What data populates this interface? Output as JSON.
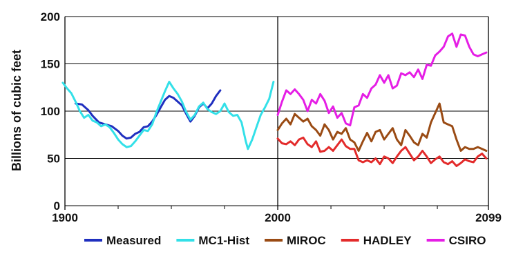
{
  "chart_data": {
    "type": "line",
    "title": "",
    "xlabel": "",
    "ylabel": "Billions of cubic feet",
    "xlim": [
      1900,
      2099
    ],
    "ylim": [
      0,
      200
    ],
    "x_ticks": [
      "1900",
      "2000",
      "2099"
    ],
    "y_ticks": [
      "0",
      "50",
      "100",
      "150",
      "200"
    ],
    "grid": "horizontal",
    "legend_position": "bottom",
    "series": [
      {
        "name": "Measured",
        "color": "#1f2fbf",
        "points": [
          [
            1905,
            108
          ],
          [
            1908,
            107
          ],
          [
            1911,
            101
          ],
          [
            1913,
            95
          ],
          [
            1916,
            88
          ],
          [
            1919,
            86
          ],
          [
            1922,
            84
          ],
          [
            1925,
            79
          ],
          [
            1927,
            74
          ],
          [
            1929,
            71
          ],
          [
            1931,
            72
          ],
          [
            1933,
            76
          ],
          [
            1935,
            78
          ],
          [
            1937,
            83
          ],
          [
            1939,
            84
          ],
          [
            1941,
            89
          ],
          [
            1943,
            96
          ],
          [
            1945,
            104
          ],
          [
            1947,
            112
          ],
          [
            1949,
            116
          ],
          [
            1951,
            114
          ],
          [
            1953,
            110
          ],
          [
            1955,
            106
          ],
          [
            1957,
            97
          ],
          [
            1959,
            89
          ],
          [
            1961,
            95
          ],
          [
            1963,
            104
          ],
          [
            1965,
            108
          ],
          [
            1967,
            103
          ],
          [
            1969,
            108
          ],
          [
            1971,
            116
          ],
          [
            1973,
            122
          ]
        ]
      },
      {
        "name": "MC1-Hist",
        "color": "#33e0e8",
        "points": [
          [
            1899,
            130
          ],
          [
            1901,
            124
          ],
          [
            1903,
            119
          ],
          [
            1905,
            110
          ],
          [
            1907,
            100
          ],
          [
            1909,
            93
          ],
          [
            1911,
            96
          ],
          [
            1913,
            90
          ],
          [
            1915,
            88
          ],
          [
            1917,
            84
          ],
          [
            1919,
            86
          ],
          [
            1921,
            83
          ],
          [
            1923,
            77
          ],
          [
            1925,
            70
          ],
          [
            1927,
            65
          ],
          [
            1929,
            62
          ],
          [
            1931,
            63
          ],
          [
            1933,
            68
          ],
          [
            1935,
            74
          ],
          [
            1937,
            80
          ],
          [
            1939,
            79
          ],
          [
            1941,
            86
          ],
          [
            1943,
            99
          ],
          [
            1945,
            110
          ],
          [
            1947,
            121
          ],
          [
            1949,
            131
          ],
          [
            1951,
            124
          ],
          [
            1953,
            118
          ],
          [
            1955,
            110
          ],
          [
            1957,
            99
          ],
          [
            1959,
            91
          ],
          [
            1961,
            96
          ],
          [
            1963,
            105
          ],
          [
            1965,
            109
          ],
          [
            1967,
            102
          ],
          [
            1969,
            99
          ],
          [
            1971,
            97
          ],
          [
            1973,
            100
          ],
          [
            1975,
            108
          ],
          [
            1977,
            99
          ],
          [
            1979,
            95
          ],
          [
            1981,
            96
          ],
          [
            1983,
            88
          ],
          [
            1985,
            68
          ],
          [
            1986,
            60
          ],
          [
            1988,
            70
          ],
          [
            1990,
            83
          ],
          [
            1992,
            96
          ],
          [
            1994,
            104
          ],
          [
            1996,
            113
          ],
          [
            1998,
            131
          ]
        ]
      },
      {
        "name": "MIROC",
        "color": "#9a4b14",
        "points": [
          [
            2000,
            80
          ],
          [
            2002,
            87
          ],
          [
            2004,
            92
          ],
          [
            2006,
            86
          ],
          [
            2008,
            97
          ],
          [
            2010,
            93
          ],
          [
            2012,
            89
          ],
          [
            2014,
            92
          ],
          [
            2016,
            84
          ],
          [
            2018,
            80
          ],
          [
            2020,
            74
          ],
          [
            2022,
            86
          ],
          [
            2024,
            80
          ],
          [
            2026,
            70
          ],
          [
            2028,
            78
          ],
          [
            2030,
            76
          ],
          [
            2032,
            82
          ],
          [
            2034,
            70
          ],
          [
            2036,
            67
          ],
          [
            2038,
            58
          ],
          [
            2040,
            68
          ],
          [
            2042,
            77
          ],
          [
            2044,
            68
          ],
          [
            2046,
            78
          ],
          [
            2048,
            80
          ],
          [
            2050,
            70
          ],
          [
            2052,
            76
          ],
          [
            2054,
            82
          ],
          [
            2056,
            70
          ],
          [
            2058,
            64
          ],
          [
            2060,
            80
          ],
          [
            2062,
            74
          ],
          [
            2064,
            67
          ],
          [
            2066,
            64
          ],
          [
            2068,
            76
          ],
          [
            2070,
            72
          ],
          [
            2072,
            88
          ],
          [
            2074,
            98
          ],
          [
            2076,
            108
          ],
          [
            2078,
            88
          ],
          [
            2080,
            86
          ],
          [
            2082,
            84
          ],
          [
            2084,
            70
          ],
          [
            2086,
            58
          ],
          [
            2088,
            62
          ],
          [
            2090,
            60
          ],
          [
            2092,
            60
          ],
          [
            2094,
            62
          ],
          [
            2096,
            60
          ],
          [
            2098,
            58
          ]
        ]
      },
      {
        "name": "HADLEY",
        "color": "#e32b2b",
        "points": [
          [
            2000,
            71
          ],
          [
            2002,
            66
          ],
          [
            2004,
            65
          ],
          [
            2006,
            68
          ],
          [
            2008,
            64
          ],
          [
            2010,
            70
          ],
          [
            2012,
            72
          ],
          [
            2014,
            65
          ],
          [
            2016,
            62
          ],
          [
            2018,
            68
          ],
          [
            2020,
            57
          ],
          [
            2022,
            58
          ],
          [
            2024,
            62
          ],
          [
            2026,
            58
          ],
          [
            2028,
            64
          ],
          [
            2030,
            70
          ],
          [
            2032,
            63
          ],
          [
            2034,
            60
          ],
          [
            2036,
            60
          ],
          [
            2038,
            48
          ],
          [
            2040,
            46
          ],
          [
            2042,
            48
          ],
          [
            2044,
            46
          ],
          [
            2046,
            50
          ],
          [
            2048,
            44
          ],
          [
            2050,
            52
          ],
          [
            2052,
            50
          ],
          [
            2054,
            45
          ],
          [
            2056,
            52
          ],
          [
            2058,
            58
          ],
          [
            2060,
            62
          ],
          [
            2062,
            55
          ],
          [
            2064,
            48
          ],
          [
            2066,
            52
          ],
          [
            2068,
            58
          ],
          [
            2070,
            52
          ],
          [
            2072,
            45
          ],
          [
            2074,
            49
          ],
          [
            2076,
            52
          ],
          [
            2078,
            46
          ],
          [
            2080,
            44
          ],
          [
            2082,
            47
          ],
          [
            2084,
            42
          ],
          [
            2086,
            45
          ],
          [
            2088,
            49
          ],
          [
            2090,
            47
          ],
          [
            2092,
            46
          ],
          [
            2094,
            52
          ],
          [
            2096,
            55
          ],
          [
            2098,
            50
          ]
        ]
      },
      {
        "name": "CSIRO",
        "color": "#e51ee5",
        "points": [
          [
            2000,
            96
          ],
          [
            2002,
            110
          ],
          [
            2004,
            122
          ],
          [
            2006,
            118
          ],
          [
            2008,
            123
          ],
          [
            2010,
            118
          ],
          [
            2012,
            112
          ],
          [
            2014,
            100
          ],
          [
            2016,
            112
          ],
          [
            2018,
            108
          ],
          [
            2020,
            118
          ],
          [
            2022,
            111
          ],
          [
            2024,
            98
          ],
          [
            2026,
            105
          ],
          [
            2028,
            93
          ],
          [
            2030,
            98
          ],
          [
            2032,
            87
          ],
          [
            2034,
            85
          ],
          [
            2036,
            104
          ],
          [
            2038,
            106
          ],
          [
            2040,
            118
          ],
          [
            2042,
            114
          ],
          [
            2044,
            124
          ],
          [
            2046,
            128
          ],
          [
            2048,
            138
          ],
          [
            2050,
            130
          ],
          [
            2052,
            138
          ],
          [
            2054,
            124
          ],
          [
            2056,
            127
          ],
          [
            2058,
            140
          ],
          [
            2060,
            138
          ],
          [
            2062,
            141
          ],
          [
            2064,
            136
          ],
          [
            2066,
            144
          ],
          [
            2068,
            134
          ],
          [
            2070,
            149
          ],
          [
            2072,
            148
          ],
          [
            2074,
            159
          ],
          [
            2076,
            163
          ],
          [
            2078,
            168
          ],
          [
            2080,
            179
          ],
          [
            2082,
            182
          ],
          [
            2084,
            168
          ],
          [
            2086,
            181
          ],
          [
            2088,
            180
          ],
          [
            2090,
            168
          ],
          [
            2092,
            160
          ],
          [
            2094,
            158
          ],
          [
            2096,
            160
          ],
          [
            2098,
            162
          ]
        ]
      }
    ]
  }
}
